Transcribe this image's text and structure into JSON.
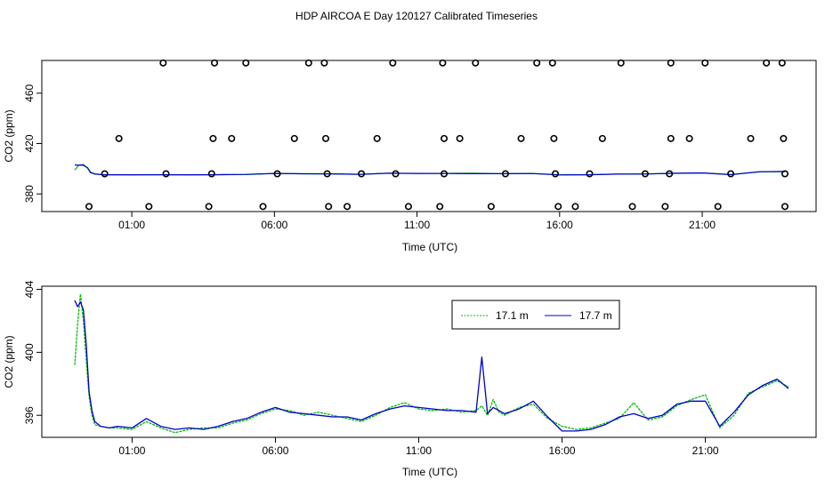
{
  "title": "HDP AIRCOA E  Day 120127  Calibrated Timeseries",
  "colors": {
    "green": "#00bb00",
    "blue": "#0000cc",
    "axis": "#000000"
  },
  "chart_data": [
    {
      "type": "scatter",
      "xlabel": "Time (UTC)",
      "ylabel": "CO2 (ppm)",
      "x_unit": "hours UTC",
      "xlim": [
        -1.0,
        23.9
      ],
      "ylim": [
        366,
        486
      ],
      "x_ticks": [
        1,
        6,
        11,
        16,
        21
      ],
      "x_tick_labels": [
        "01:00",
        "06:00",
        "11:00",
        "16:00",
        "21:00"
      ],
      "y_ticks": [
        380,
        420,
        460
      ],
      "y_tick_labels": [
        "380",
        "420",
        "460"
      ],
      "grid": false,
      "levels": [
        {
          "y": 484,
          "x": [
            2.1,
            3.9,
            5.0,
            7.2,
            7.75,
            10.15,
            11.9,
            13.05,
            15.2,
            15.75,
            18.15,
            19.9,
            21.1,
            23.25,
            23.8
          ]
        },
        {
          "y": 424,
          "x": [
            0.55,
            3.85,
            4.5,
            6.7,
            7.8,
            9.6,
            11.95,
            12.5,
            14.65,
            15.8,
            17.5,
            19.9,
            20.55,
            22.7,
            23.85
          ]
        },
        {
          "y": 396,
          "x": [
            0.05,
            2.2,
            3.8,
            6.1,
            7.85,
            9.05,
            10.25,
            11.95,
            14.1,
            15.85,
            17.05,
            19.0,
            19.85,
            22.0,
            23.9
          ]
        },
        {
          "y": 370,
          "x": [
            -0.5,
            1.6,
            3.7,
            5.6,
            7.9,
            8.55,
            10.7,
            11.8,
            13.6,
            15.95,
            16.55,
            18.55,
            19.7,
            21.55,
            23.9
          ]
        }
      ],
      "series": [
        {
          "name": "17.1 m",
          "x": [
            -1.0,
            -0.85,
            -0.7,
            -0.55,
            -0.45,
            -0.3,
            0.0,
            1.0,
            2.0,
            3.0,
            4.0,
            5.0,
            6.0,
            7.0,
            8.0,
            9.0,
            10.0,
            11.0,
            12.0,
            13.0,
            14.0,
            15.0,
            16.0,
            17.0,
            18.0,
            19.0,
            20.0,
            21.0,
            22.0,
            23.0,
            23.9
          ],
          "y": [
            399.0,
            403.0,
            402.5,
            401.0,
            397.5,
            396.0,
            395.2,
            395.1,
            395.3,
            395.1,
            395.2,
            395.4,
            396.2,
            396.0,
            395.9,
            395.5,
            396.5,
            396.2,
            396.3,
            396.5,
            396.0,
            396.3,
            395.3,
            395.2,
            395.8,
            395.9,
            396.3,
            396.6,
            395.4,
            397.5,
            397.7
          ]
        },
        {
          "name": "17.7 m",
          "x": [
            -1.0,
            -0.85,
            -0.7,
            -0.55,
            -0.45,
            -0.3,
            0.0,
            1.0,
            2.0,
            3.0,
            4.0,
            5.0,
            6.0,
            7.0,
            8.0,
            9.0,
            10.0,
            11.0,
            12.0,
            13.0,
            14.0,
            15.0,
            16.0,
            17.0,
            18.0,
            19.0,
            20.0,
            21.0,
            22.0,
            23.0,
            23.9
          ],
          "y": [
            403.0,
            402.8,
            403.2,
            400.5,
            397.0,
            395.8,
            395.2,
            395.2,
            395.2,
            395.2,
            395.3,
            395.5,
            396.3,
            396.0,
            395.9,
            395.6,
            396.4,
            396.3,
            396.2,
            396.1,
            396.1,
            396.2,
            395.1,
            395.2,
            395.7,
            395.8,
            396.4,
            396.7,
            395.3,
            397.6,
            397.8
          ]
        }
      ]
    },
    {
      "type": "line",
      "xlabel": "Time (UTC)",
      "ylabel": "CO2 (ppm)",
      "x_unit": "hours UTC",
      "xlim": [
        -1.0,
        23.9
      ],
      "ylim": [
        394.6,
        404.2
      ],
      "x_ticks": [
        1,
        6,
        11,
        16,
        21
      ],
      "x_tick_labels": [
        "01:00",
        "06:00",
        "11:00",
        "16:00",
        "21:00"
      ],
      "y_ticks": [
        396,
        400,
        404
      ],
      "y_tick_labels": [
        "396",
        "400",
        "404"
      ],
      "grid": false,
      "legend_position": "top-right",
      "series": [
        {
          "name": "17.1 m",
          "color": "#00bb00",
          "x": [
            -1.0,
            -0.9,
            -0.8,
            -0.7,
            -0.6,
            -0.5,
            -0.4,
            -0.3,
            -0.1,
            0.2,
            0.5,
            1.0,
            1.5,
            2.0,
            2.5,
            3.0,
            3.5,
            4.0,
            4.5,
            5.0,
            5.5,
            6.0,
            6.5,
            7.0,
            7.5,
            8.0,
            8.5,
            9.0,
            9.5,
            10.0,
            10.5,
            11.0,
            11.5,
            12.0,
            12.5,
            13.0,
            13.2,
            13.4,
            13.6,
            13.8,
            14.0,
            14.5,
            15.0,
            15.5,
            16.0,
            16.5,
            17.0,
            17.5,
            18.0,
            18.5,
            19.0,
            19.5,
            20.0,
            20.5,
            21.0,
            21.5,
            22.0,
            22.5,
            23.0,
            23.5,
            23.9
          ],
          "y": [
            399.2,
            401.8,
            403.7,
            402.0,
            399.5,
            397.2,
            396.0,
            395.4,
            395.3,
            395.2,
            395.2,
            395.1,
            395.6,
            395.2,
            394.9,
            395.1,
            395.2,
            395.2,
            395.5,
            395.7,
            396.1,
            396.4,
            396.3,
            396.0,
            396.2,
            396.0,
            395.8,
            395.6,
            396.0,
            396.5,
            396.8,
            396.4,
            396.3,
            396.4,
            396.2,
            396.3,
            396.6,
            396.0,
            397.0,
            396.2,
            396.0,
            396.5,
            396.7,
            395.8,
            395.3,
            395.1,
            395.2,
            395.5,
            395.8,
            396.8,
            395.7,
            395.9,
            396.6,
            397.0,
            397.3,
            395.2,
            396.0,
            397.4,
            397.8,
            398.2,
            397.8
          ]
        },
        {
          "name": "17.7 m",
          "color": "#0000cc",
          "x": [
            -1.0,
            -0.9,
            -0.8,
            -0.7,
            -0.6,
            -0.5,
            -0.4,
            -0.3,
            -0.1,
            0.2,
            0.5,
            1.0,
            1.5,
            2.0,
            2.5,
            3.0,
            3.5,
            4.0,
            4.5,
            5.0,
            5.5,
            6.0,
            6.5,
            7.0,
            7.5,
            8.0,
            8.5,
            9.0,
            9.5,
            10.0,
            10.5,
            11.0,
            11.5,
            12.0,
            12.5,
            13.0,
            13.2,
            13.4,
            13.6,
            13.8,
            14.0,
            14.5,
            15.0,
            15.5,
            16.0,
            16.5,
            17.0,
            17.5,
            18.0,
            18.5,
            19.0,
            19.5,
            20.0,
            20.5,
            21.0,
            21.5,
            22.0,
            22.5,
            23.0,
            23.5,
            23.9
          ],
          "y": [
            403.3,
            402.9,
            403.2,
            402.7,
            400.5,
            397.5,
            396.3,
            395.6,
            395.3,
            395.2,
            395.3,
            395.2,
            395.8,
            395.3,
            395.1,
            395.2,
            395.1,
            395.3,
            395.6,
            395.8,
            396.2,
            396.5,
            396.2,
            396.1,
            396.0,
            395.9,
            395.9,
            395.7,
            396.1,
            396.4,
            396.6,
            396.5,
            396.4,
            396.3,
            396.3,
            396.2,
            399.7,
            396.1,
            396.5,
            396.3,
            396.1,
            396.4,
            396.9,
            395.9,
            395.0,
            395.0,
            395.1,
            395.4,
            395.9,
            396.1,
            395.8,
            396.0,
            396.7,
            396.9,
            396.9,
            395.3,
            396.2,
            397.3,
            397.9,
            398.3,
            397.7
          ]
        }
      ]
    }
  ]
}
